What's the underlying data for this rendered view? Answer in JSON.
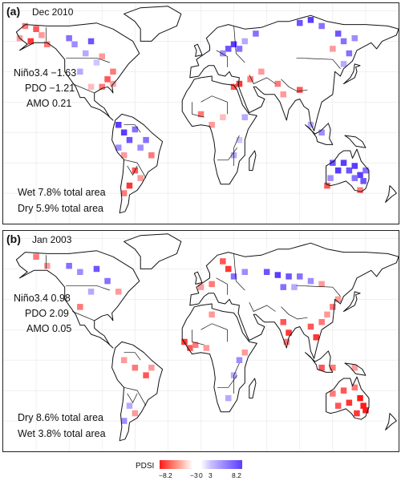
{
  "panels": [
    {
      "tag": "(a)",
      "date": "Dec 2010",
      "indices": [
        "Niño3.4 −1.63",
        "PDO −1.21",
        "AMO 0.21"
      ],
      "areas": [
        "Wet 7.8% total area",
        "Dry 5.9% total area"
      ],
      "cells": [
        {
          "lon": -160,
          "lat": 70,
          "v": -4
        },
        {
          "lon": -150,
          "lat": 68,
          "v": -5
        },
        {
          "lon": -145,
          "lat": 64,
          "v": -3
        },
        {
          "lon": -155,
          "lat": 60,
          "v": -6
        },
        {
          "lon": -140,
          "lat": 58,
          "v": -4
        },
        {
          "lon": -165,
          "lat": 62,
          "v": -3
        },
        {
          "lon": -120,
          "lat": 62,
          "v": 5
        },
        {
          "lon": -115,
          "lat": 58,
          "v": 4
        },
        {
          "lon": -100,
          "lat": 60,
          "v": 6
        },
        {
          "lon": -105,
          "lat": 52,
          "v": 3
        },
        {
          "lon": -90,
          "lat": 50,
          "v": -3
        },
        {
          "lon": -95,
          "lat": 46,
          "v": 2
        },
        {
          "lon": -80,
          "lat": 40,
          "v": -4
        },
        {
          "lon": -85,
          "lat": 35,
          "v": -5
        },
        {
          "lon": -80,
          "lat": 32,
          "v": -3
        },
        {
          "lon": -100,
          "lat": 30,
          "v": -2
        },
        {
          "lon": -90,
          "lat": 30,
          "v": -4
        },
        {
          "lon": -110,
          "lat": 40,
          "v": 3
        },
        {
          "lon": -75,
          "lat": 5,
          "v": 7
        },
        {
          "lon": -70,
          "lat": 0,
          "v": 8
        },
        {
          "lon": -65,
          "lat": -5,
          "v": 6
        },
        {
          "lon": -60,
          "lat": 2,
          "v": 5
        },
        {
          "lon": -55,
          "lat": -10,
          "v": 4
        },
        {
          "lon": -50,
          "lat": -5,
          "v": 5
        },
        {
          "lon": -45,
          "lat": -15,
          "v": -4
        },
        {
          "lon": -60,
          "lat": -25,
          "v": -5
        },
        {
          "lon": -55,
          "lat": -30,
          "v": -3
        },
        {
          "lon": -65,
          "lat": -35,
          "v": -6
        },
        {
          "lon": -70,
          "lat": -40,
          "v": -4
        },
        {
          "lon": -70,
          "lat": -15,
          "v": -3
        },
        {
          "lon": -75,
          "lat": -10,
          "v": 4
        },
        {
          "lon": 25,
          "lat": 55,
          "v": 6
        },
        {
          "lon": 30,
          "lat": 58,
          "v": 7
        },
        {
          "lon": 35,
          "lat": 55,
          "v": 5
        },
        {
          "lon": 20,
          "lat": 52,
          "v": 4
        },
        {
          "lon": 40,
          "lat": 60,
          "v": 3
        },
        {
          "lon": 50,
          "lat": 65,
          "v": 5
        },
        {
          "lon": 90,
          "lat": 72,
          "v": 6
        },
        {
          "lon": 100,
          "lat": 74,
          "v": 7
        },
        {
          "lon": 110,
          "lat": 70,
          "v": 5
        },
        {
          "lon": 125,
          "lat": 65,
          "v": 6
        },
        {
          "lon": 130,
          "lat": 60,
          "v": 5
        },
        {
          "lon": 140,
          "lat": 62,
          "v": 4
        },
        {
          "lon": 135,
          "lat": 52,
          "v": 5
        },
        {
          "lon": 130,
          "lat": 45,
          "v": 3
        },
        {
          "lon": 120,
          "lat": 55,
          "v": -3
        },
        {
          "lon": 30,
          "lat": 30,
          "v": -5
        },
        {
          "lon": 35,
          "lat": 32,
          "v": -6
        },
        {
          "lon": 45,
          "lat": 35,
          "v": -4
        },
        {
          "lon": 55,
          "lat": 40,
          "v": -3
        },
        {
          "lon": 70,
          "lat": 32,
          "v": -4
        },
        {
          "lon": 75,
          "lat": 25,
          "v": -3
        },
        {
          "lon": 90,
          "lat": 28,
          "v": -5
        },
        {
          "lon": 0,
          "lat": 12,
          "v": -4
        },
        {
          "lon": 10,
          "lat": 5,
          "v": -3
        },
        {
          "lon": 20,
          "lat": 10,
          "v": -2
        },
        {
          "lon": 40,
          "lat": 10,
          "v": 3
        },
        {
          "lon": 35,
          "lat": -5,
          "v": 2
        },
        {
          "lon": 30,
          "lat": -15,
          "v": 3
        },
        {
          "lon": 120,
          "lat": -20,
          "v": 6
        },
        {
          "lon": 125,
          "lat": -25,
          "v": 7
        },
        {
          "lon": 130,
          "lat": -20,
          "v": 8
        },
        {
          "lon": 135,
          "lat": -25,
          "v": 6
        },
        {
          "lon": 140,
          "lat": -22,
          "v": 7
        },
        {
          "lon": 145,
          "lat": -28,
          "v": 8
        },
        {
          "lon": 148,
          "lat": -32,
          "v": 6
        },
        {
          "lon": 140,
          "lat": -30,
          "v": 5
        },
        {
          "lon": 118,
          "lat": -30,
          "v": 4
        },
        {
          "lon": 150,
          "lat": -25,
          "v": 5
        },
        {
          "lon": 115,
          "lat": -35,
          "v": -5
        },
        {
          "lon": 145,
          "lat": -38,
          "v": -4
        },
        {
          "lon": 110,
          "lat": 0,
          "v": 4
        },
        {
          "lon": 100,
          "lat": 5,
          "v": 3
        }
      ]
    },
    {
      "tag": "(b)",
      "date": "Jan 2003",
      "indices": [
        "Niño3.4 0.98",
        "PDO 2.09",
        "AMO 0.05"
      ],
      "areas": [
        "Dry 8.6% total area",
        "Wet 3.8% total area"
      ],
      "cells": [
        {
          "lon": -150,
          "lat": 68,
          "v": -4
        },
        {
          "lon": -140,
          "lat": 62,
          "v": -3
        },
        {
          "lon": -120,
          "lat": 62,
          "v": 5
        },
        {
          "lon": -110,
          "lat": 58,
          "v": 4
        },
        {
          "lon": -95,
          "lat": 60,
          "v": 6
        },
        {
          "lon": -85,
          "lat": 52,
          "v": 5
        },
        {
          "lon": -100,
          "lat": 45,
          "v": 3
        },
        {
          "lon": -75,
          "lat": 45,
          "v": -3
        },
        {
          "lon": -110,
          "lat": 35,
          "v": -4
        },
        {
          "lon": -70,
          "lat": 0,
          "v": -3
        },
        {
          "lon": -60,
          "lat": -5,
          "v": -4
        },
        {
          "lon": -50,
          "lat": -10,
          "v": -5
        },
        {
          "lon": -45,
          "lat": -5,
          "v": -3
        },
        {
          "lon": -65,
          "lat": -30,
          "v": 3
        },
        {
          "lon": -70,
          "lat": -40,
          "v": 4
        },
        {
          "lon": -60,
          "lat": -35,
          "v": -3
        },
        {
          "lon": 20,
          "lat": 65,
          "v": -5
        },
        {
          "lon": 25,
          "lat": 60,
          "v": -6
        },
        {
          "lon": 30,
          "lat": 55,
          "v": 5
        },
        {
          "lon": 10,
          "lat": 50,
          "v": -4
        },
        {
          "lon": 0,
          "lat": 48,
          "v": -3
        },
        {
          "lon": 40,
          "lat": 58,
          "v": 4
        },
        {
          "lon": 60,
          "lat": 58,
          "v": 6
        },
        {
          "lon": 70,
          "lat": 56,
          "v": 7
        },
        {
          "lon": 80,
          "lat": 55,
          "v": 6
        },
        {
          "lon": 90,
          "lat": 55,
          "v": 5
        },
        {
          "lon": 100,
          "lat": 52,
          "v": 4
        },
        {
          "lon": 75,
          "lat": 48,
          "v": 5
        },
        {
          "lon": 85,
          "lat": 48,
          "v": 3
        },
        {
          "lon": 110,
          "lat": 50,
          "v": -3
        },
        {
          "lon": 75,
          "lat": 25,
          "v": -5
        },
        {
          "lon": 80,
          "lat": 18,
          "v": -6
        },
        {
          "lon": 78,
          "lat": 12,
          "v": -4
        },
        {
          "lon": 100,
          "lat": 22,
          "v": -5
        },
        {
          "lon": 105,
          "lat": 15,
          "v": -6
        },
        {
          "lon": 110,
          "lat": 25,
          "v": -4
        },
        {
          "lon": 115,
          "lat": 30,
          "v": -3
        },
        {
          "lon": 120,
          "lat": 35,
          "v": -4
        },
        {
          "lon": 125,
          "lat": 40,
          "v": -3
        },
        {
          "lon": -15,
          "lat": 12,
          "v": -6
        },
        {
          "lon": -10,
          "lat": 8,
          "v": -5
        },
        {
          "lon": -5,
          "lat": 10,
          "v": -4
        },
        {
          "lon": 5,
          "lat": 8,
          "v": -3
        },
        {
          "lon": 35,
          "lat": 0,
          "v": 4
        },
        {
          "lon": 30,
          "lat": -10,
          "v": 3
        },
        {
          "lon": 40,
          "lat": 5,
          "v": -3
        },
        {
          "lon": 25,
          "lat": -25,
          "v": 3
        },
        {
          "lon": 10,
          "lat": 30,
          "v": -3
        },
        {
          "lon": 120,
          "lat": -5,
          "v": -4
        },
        {
          "lon": 110,
          "lat": -5,
          "v": -5
        },
        {
          "lon": 140,
          "lat": -5,
          "v": -3
        },
        {
          "lon": 120,
          "lat": -22,
          "v": -4
        },
        {
          "lon": 130,
          "lat": -20,
          "v": -5
        },
        {
          "lon": 135,
          "lat": -28,
          "v": -6
        },
        {
          "lon": 145,
          "lat": -25,
          "v": -7
        },
        {
          "lon": 148,
          "lat": -30,
          "v": -8
        },
        {
          "lon": 142,
          "lat": -35,
          "v": -6
        },
        {
          "lon": 150,
          "lat": -33,
          "v": -7
        },
        {
          "lon": 125,
          "lat": -30,
          "v": -5
        },
        {
          "lon": 140,
          "lat": -18,
          "v": -4
        }
      ]
    }
  ],
  "legend": {
    "title": "PDSI",
    "ticks": [
      "−8.2",
      "−3",
      "0",
      "3",
      "8.2"
    ],
    "min": -8.2,
    "max": 8.2,
    "colors": {
      "dry": "#ff1a1a",
      "neutral": "#ffffff",
      "wet": "#5a3cff"
    }
  },
  "map_style": {
    "land_fill": "#ffffff",
    "border": "#111111",
    "grid": "#e6e6e6"
  }
}
